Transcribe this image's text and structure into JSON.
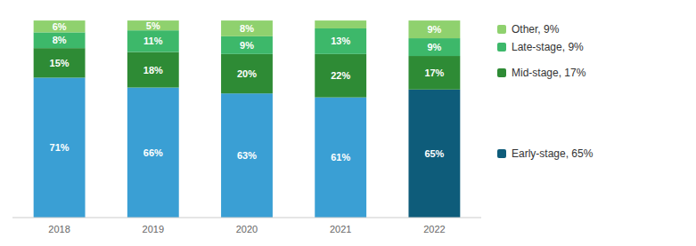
{
  "chart_data": {
    "type": "bar",
    "stacked": true,
    "categories": [
      "2018",
      "2019",
      "2020",
      "2021",
      "2022"
    ],
    "series": [
      {
        "name": "Early-stage, 65%",
        "colors": [
          "#3a9fd4",
          "#3a9fd4",
          "#3a9fd4",
          "#3a9fd4",
          "#0e5c7a"
        ],
        "values": [
          71,
          66,
          63,
          61,
          65
        ],
        "value_labels": [
          "71%",
          "66%",
          "63%",
          "61%",
          "65%"
        ]
      },
      {
        "name": "Mid-stage, 17%",
        "color": "#2e8b35",
        "values": [
          15,
          18,
          20,
          22,
          17
        ],
        "value_labels": [
          "15%",
          "18%",
          "20%",
          "22%",
          "17%"
        ]
      },
      {
        "name": "Late-stage, 9%",
        "color": "#3db86a",
        "values": [
          8,
          11,
          9,
          13,
          9
        ],
        "value_labels": [
          "8%",
          "11%",
          "9%",
          "13%",
          "9%"
        ]
      },
      {
        "name": "Other, 9%",
        "color": "#8fd16e",
        "values": [
          6,
          5,
          8,
          4,
          9
        ],
        "value_labels": [
          "6%",
          "5%",
          "8%",
          null,
          "9%"
        ]
      }
    ],
    "ylim": [
      0,
      105
    ],
    "data_labels": true,
    "tick_labels": "x",
    "grid": false,
    "legend": "right"
  }
}
